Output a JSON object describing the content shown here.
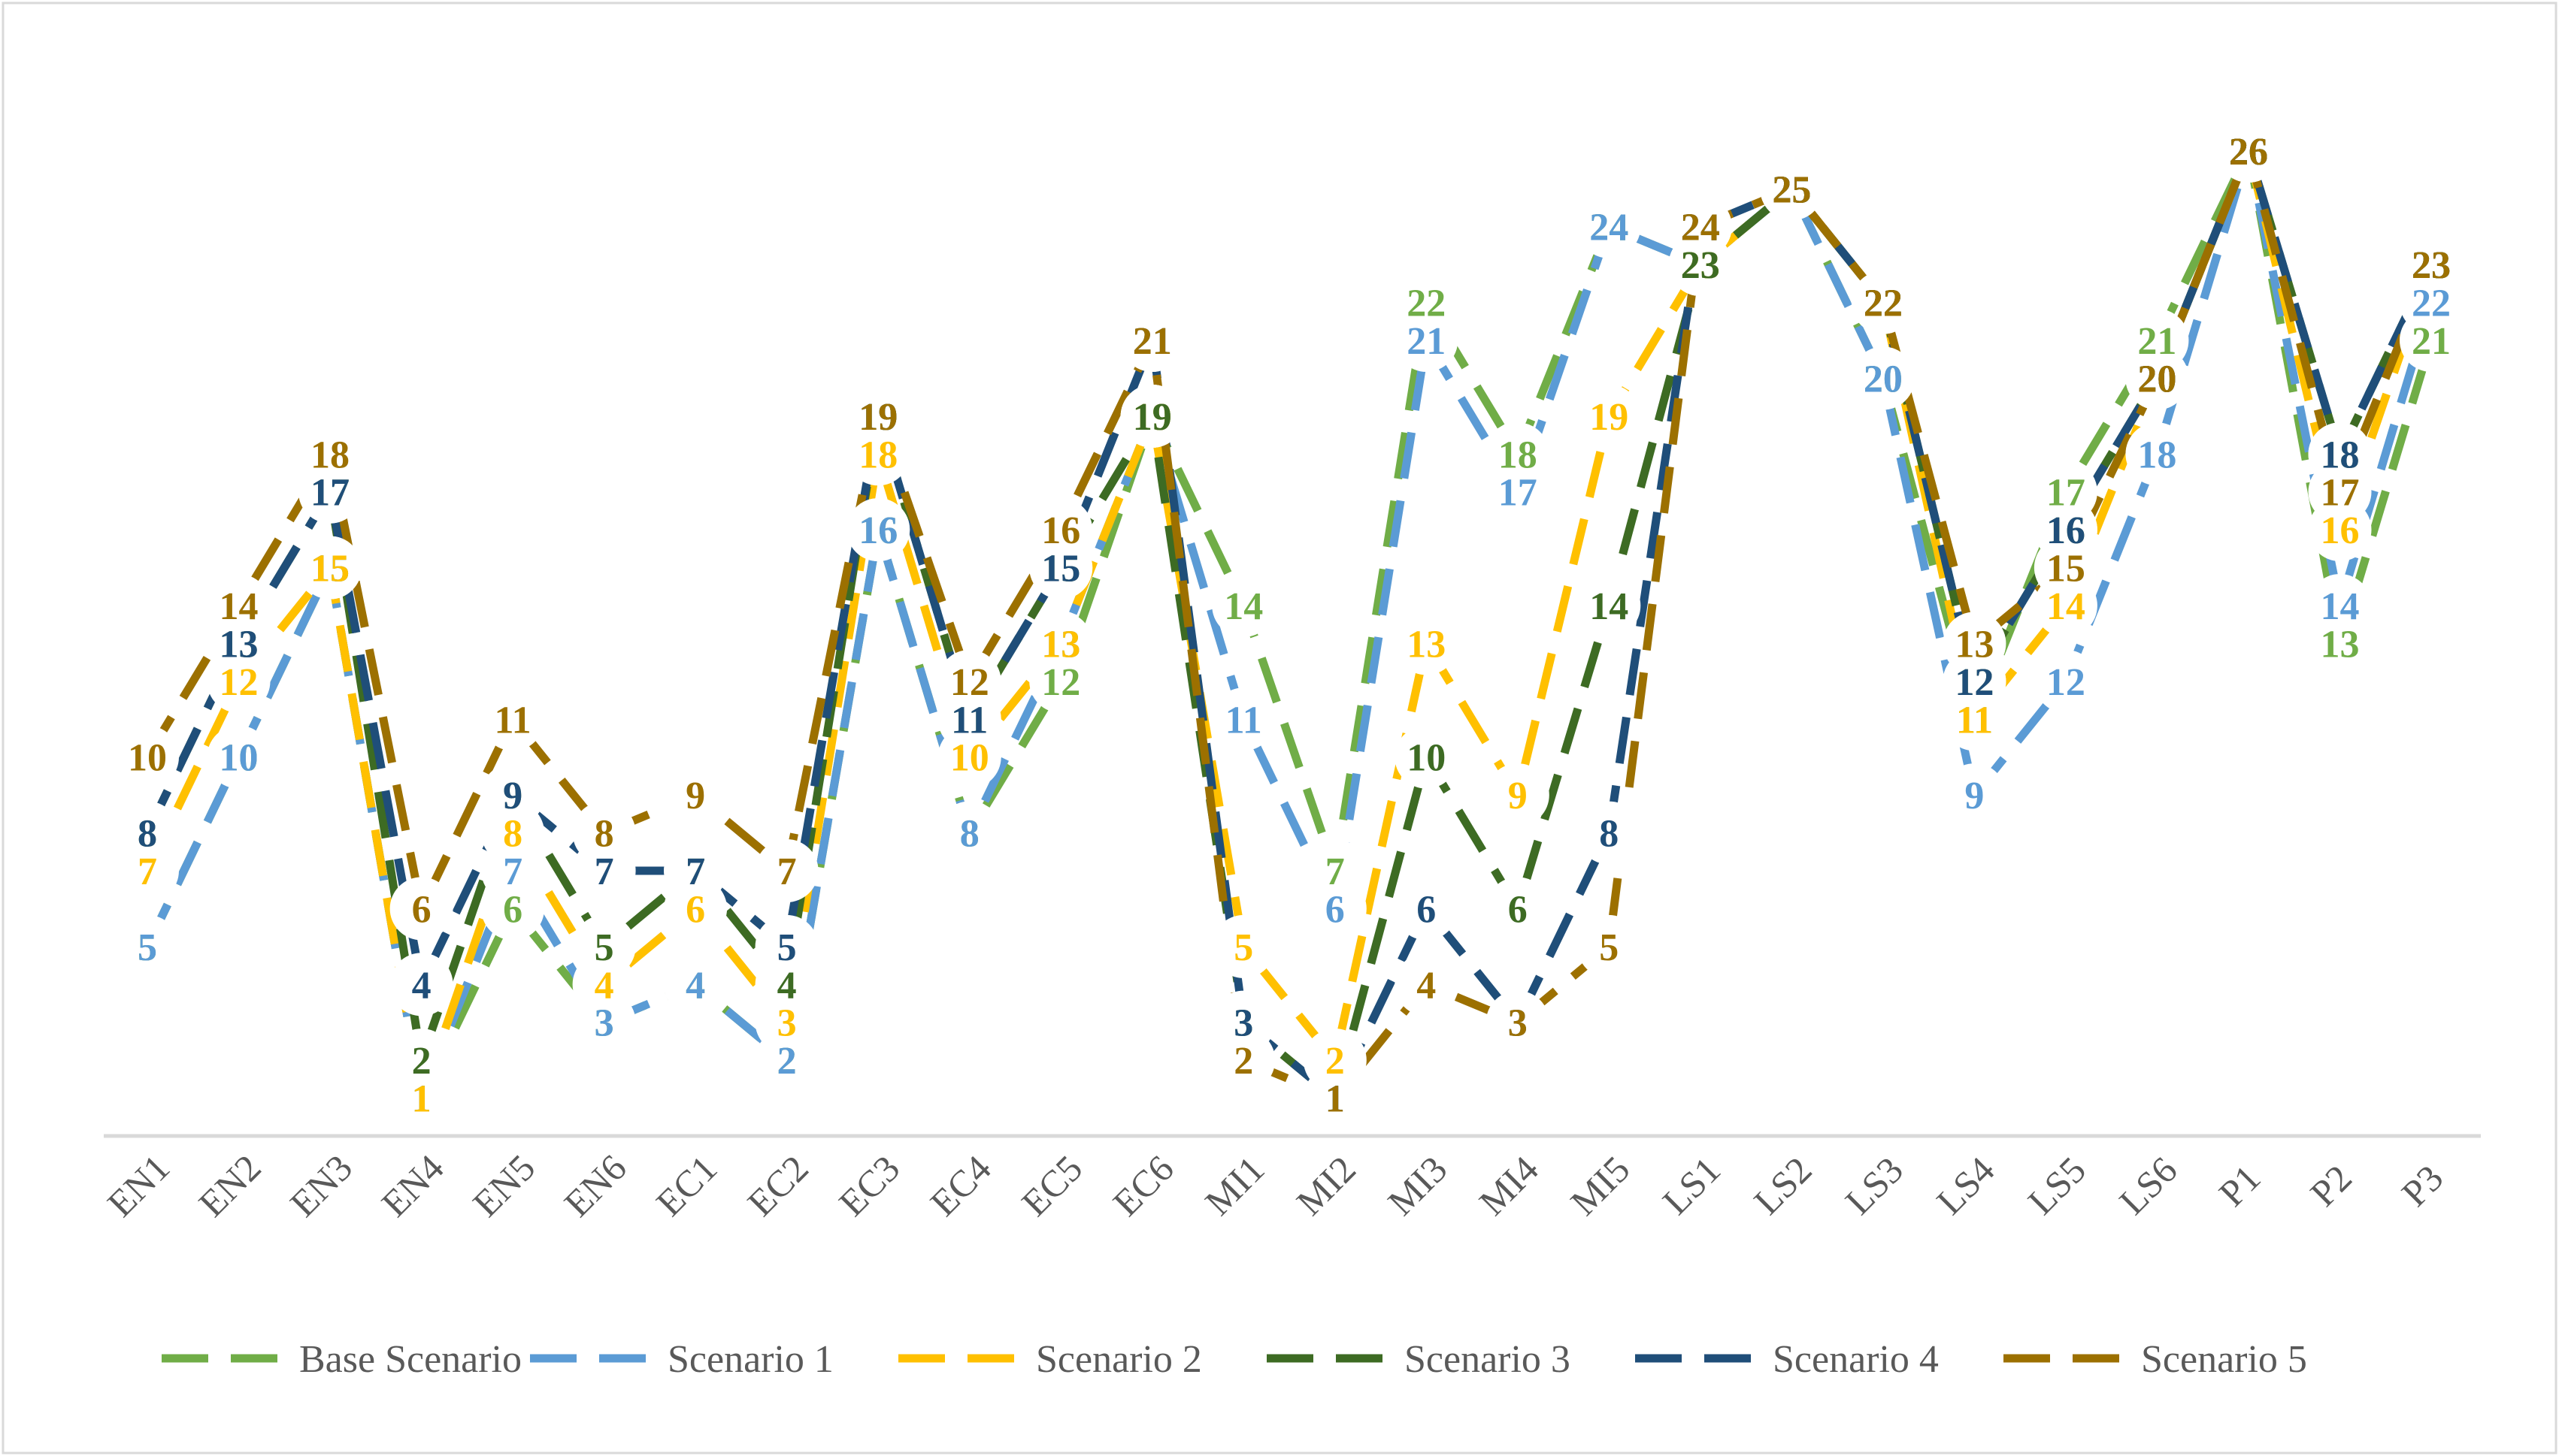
{
  "chart_data": {
    "type": "line",
    "title": "",
    "xlabel": "",
    "ylabel": "",
    "ylim": [
      0,
      28
    ],
    "grid": false,
    "legend_position": "bottom",
    "categories": [
      "EN1",
      "EN2",
      "EN3",
      "EN4",
      "EN5",
      "EN6",
      "EC1",
      "EC2",
      "EC3",
      "EC4",
      "EC5",
      "EC6",
      "MI1",
      "MI2",
      "MI3",
      "MI4",
      "MI5",
      "LS1",
      "LS2",
      "LS3",
      "LS4",
      "LS5",
      "LS6",
      "P1",
      "P2",
      "P3"
    ],
    "series": [
      {
        "name": "Base Scenario",
        "color": "#70ad47",
        "values": [
          5,
          10,
          15,
          1,
          6,
          3,
          4,
          2,
          16,
          8,
          12,
          19,
          14,
          7,
          22,
          18,
          24,
          23,
          25,
          20,
          11,
          17,
          21,
          26,
          13,
          21
        ]
      },
      {
        "name": "Scenario 1",
        "color": "#5b9bd5",
        "values": [
          5,
          10,
          15,
          1,
          7,
          3,
          4,
          2,
          16,
          8,
          13,
          19,
          11,
          6,
          21,
          17,
          24,
          23,
          25,
          20,
          9,
          12,
          18,
          26,
          14,
          22
        ]
      },
      {
        "name": "Scenario 2",
        "color": "#ffc000",
        "values": [
          7,
          12,
          15,
          1,
          8,
          4,
          6,
          3,
          18,
          10,
          13,
          19,
          5,
          2,
          13,
          9,
          19,
          23,
          25,
          22,
          11,
          14,
          20,
          26,
          16,
          23
        ]
      },
      {
        "name": "Scenario 3",
        "color": "#3d6b23",
        "values": [
          8,
          13,
          17,
          2,
          9,
          5,
          7,
          4,
          19,
          11,
          15,
          19,
          3,
          1,
          10,
          6,
          14,
          23,
          25,
          22,
          12,
          16,
          20,
          26,
          18,
          23
        ]
      },
      {
        "name": "Scenario 4",
        "color": "#1f4e79",
        "values": [
          8,
          13,
          17,
          4,
          9,
          7,
          7,
          5,
          19,
          11,
          15,
          21,
          3,
          1,
          6,
          3,
          8,
          24,
          25,
          22,
          12,
          16,
          20,
          26,
          18,
          23
        ]
      },
      {
        "name": "Scenario 5",
        "color": "#9c7000",
        "values": [
          10,
          14,
          18,
          6,
          11,
          8,
          9,
          7,
          19,
          12,
          16,
          21,
          2,
          1,
          4,
          3,
          5,
          24,
          25,
          22,
          13,
          15,
          20,
          26,
          17,
          23
        ]
      }
    ]
  }
}
